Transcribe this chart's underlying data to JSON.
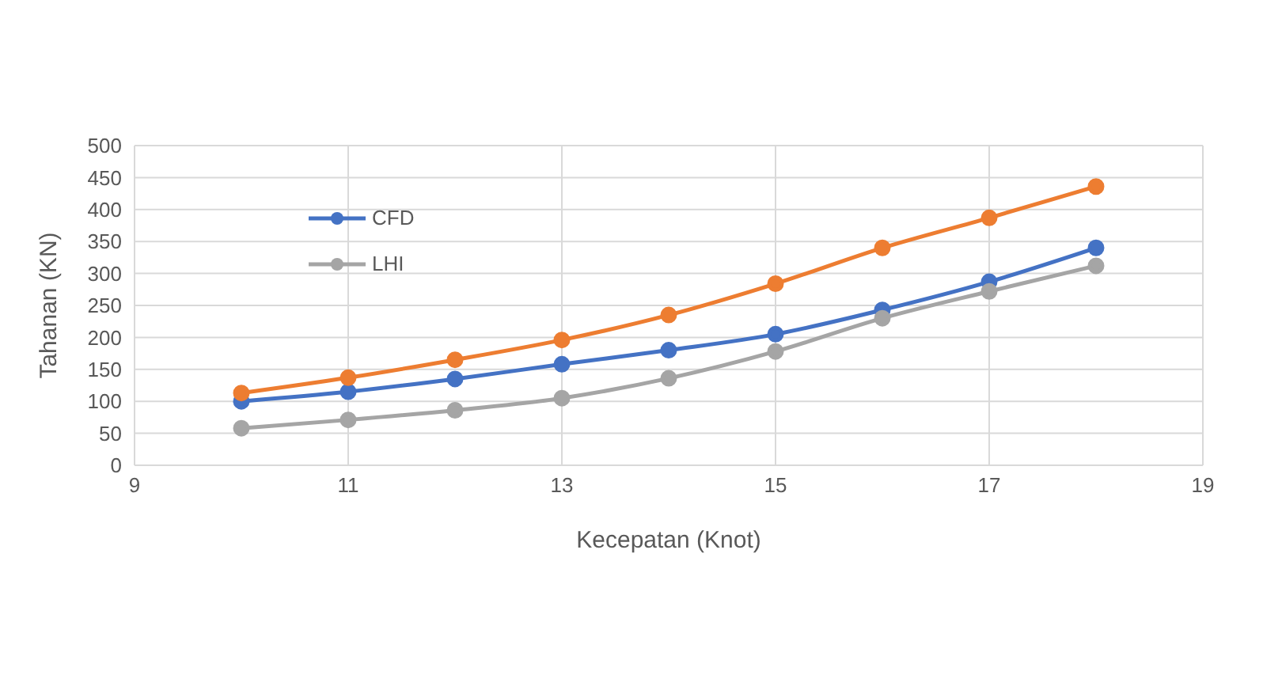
{
  "chart_data": {
    "type": "line",
    "xlabel": "Kecepatan (Knot)",
    "ylabel": "Tahanan (KN)",
    "x": [
      10,
      11,
      12,
      13,
      14,
      15,
      16,
      17,
      18
    ],
    "series": [
      {
        "name": "CFD",
        "color": "#4472c4",
        "values": [
          100,
          115,
          135,
          158,
          180,
          205,
          243,
          287,
          340
        ]
      },
      {
        "color": "#ed7d31",
        "values": [
          113,
          137,
          165,
          196,
          235,
          284,
          340,
          387,
          436
        ]
      },
      {
        "name": "LHI",
        "color": "#a5a5a5",
        "values": [
          58,
          71,
          86,
          105,
          136,
          178,
          230,
          272,
          312
        ]
      }
    ],
    "xlim": [
      9,
      19
    ],
    "xticks": [
      9,
      11,
      13,
      15,
      17,
      19
    ],
    "ylim": [
      0,
      500
    ],
    "yticks": [
      0,
      50,
      100,
      150,
      200,
      250,
      300,
      350,
      400,
      450,
      500
    ],
    "grid": true,
    "legend": "top left",
    "marker": "circle",
    "line_style": "solid"
  }
}
